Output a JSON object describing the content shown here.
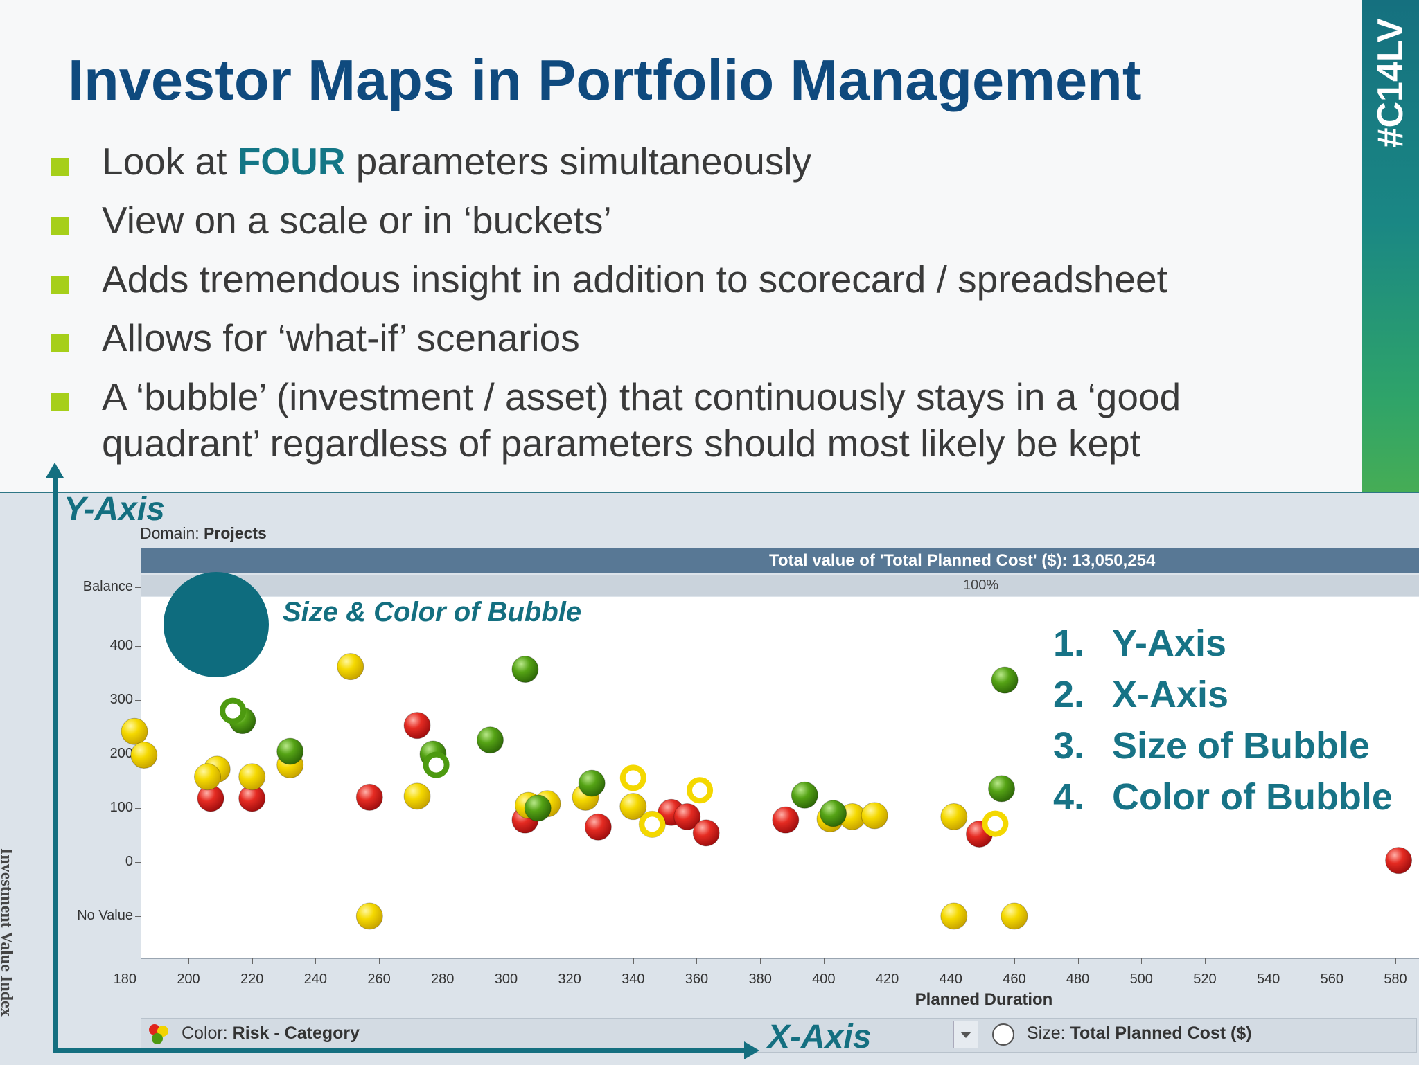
{
  "slide": {
    "title": "Investor Maps in Portfolio Management",
    "tag": "#C14LV",
    "bullets": [
      {
        "before": "Look at ",
        "highlight": "FOUR",
        "after": " parameters simultaneously"
      },
      {
        "before": "View on a scale or in ‘buckets’",
        "highlight": "",
        "after": ""
      },
      {
        "before": "Adds tremendous insight in addition to scorecard / spreadsheet",
        "highlight": "",
        "after": ""
      },
      {
        "before": "Allows for ‘what-if’ scenarios",
        "highlight": "",
        "after": ""
      },
      {
        "before": "A ‘bubble’ (investment / asset) that continuously stays in a ‘good quadrant’ regardless of parameters should most likely be kept",
        "highlight": "",
        "after": ""
      }
    ]
  },
  "callouts": {
    "y_axis": "Y-Axis",
    "x_axis": "X-Axis",
    "bubble": "Size & Color of Bubble",
    "list": [
      {
        "num": "1.",
        "text": "Y-Axis"
      },
      {
        "num": "2.",
        "text": "X-Axis"
      },
      {
        "num": "3.",
        "text": "Size of Bubble"
      },
      {
        "num": "4.",
        "text": "Color of Bubble"
      }
    ]
  },
  "colors": {
    "red": "#e02020",
    "yellow": "#f4d800",
    "green": "#4d9a10",
    "accent": "#146f80",
    "title": "#0f4a7e"
  },
  "chart_data": {
    "type": "scatter",
    "domain_label": "Domain:",
    "domain_value": "Projects",
    "total_label": "Total value of 'Total Planned Cost' ($): 13,050,254",
    "balance_pct": "100%",
    "xlabel": "Planned Duration",
    "ylabel": "Investment Value Index",
    "xlim": [
      165,
      585
    ],
    "ylim": [
      -100,
      400
    ],
    "x_ticks": [
      "180",
      "200",
      "220",
      "240",
      "260",
      "280",
      "300",
      "320",
      "340",
      "360",
      "380",
      "400",
      "420",
      "440",
      "460",
      "480",
      "500",
      "520",
      "540",
      "560",
      "580"
    ],
    "y_ticks": [
      "Balance",
      "400",
      "300",
      "200",
      "100",
      "0",
      "No Value"
    ],
    "color_label": "Color:",
    "color_value": "Risk - Category",
    "size_label": "Size:",
    "size_value": "Total Planned Cost ($)",
    "series": [
      {
        "name": "",
        "color": "red",
        "points": [
          [
            207,
            118
          ],
          [
            220,
            118
          ],
          [
            257,
            120
          ],
          [
            272,
            253
          ],
          [
            306,
            78
          ],
          [
            329,
            65
          ],
          [
            352,
            92
          ],
          [
            357,
            84
          ],
          [
            363,
            54
          ],
          [
            388,
            78
          ],
          [
            449,
            52
          ],
          [
            581,
            3
          ]
        ]
      },
      {
        "name": "",
        "color": "yellow",
        "points": [
          [
            183,
            242
          ],
          [
            186,
            198
          ],
          [
            209,
            172
          ],
          [
            206,
            158
          ],
          [
            220,
            158
          ],
          [
            232,
            180
          ],
          [
            251,
            362
          ],
          [
            257,
            -100
          ],
          [
            272,
            122
          ],
          [
            307,
            105
          ],
          [
            313,
            108
          ],
          [
            325,
            120
          ],
          [
            340,
            103
          ],
          [
            346,
            70
          ],
          [
            402,
            80
          ],
          [
            409,
            84
          ],
          [
            416,
            86
          ],
          [
            441,
            84
          ],
          [
            441,
            -100
          ],
          [
            460,
            -100
          ]
        ]
      },
      {
        "name": "",
        "color": "green",
        "points": [
          [
            217,
            262
          ],
          [
            232,
            205
          ],
          [
            277,
            200
          ],
          [
            295,
            226
          ],
          [
            306,
            357
          ],
          [
            310,
            100
          ],
          [
            327,
            146
          ],
          [
            394,
            124
          ],
          [
            403,
            90
          ],
          [
            457,
            337
          ],
          [
            456,
            136
          ]
        ]
      },
      {
        "name": "",
        "color": "green-ring",
        "points": [
          [
            214,
            280
          ],
          [
            278,
            180
          ]
        ]
      },
      {
        "name": "",
        "color": "yellow-ring",
        "points": [
          [
            340,
            156
          ],
          [
            361,
            133
          ],
          [
            346,
            70
          ],
          [
            454,
            71
          ]
        ]
      }
    ]
  }
}
